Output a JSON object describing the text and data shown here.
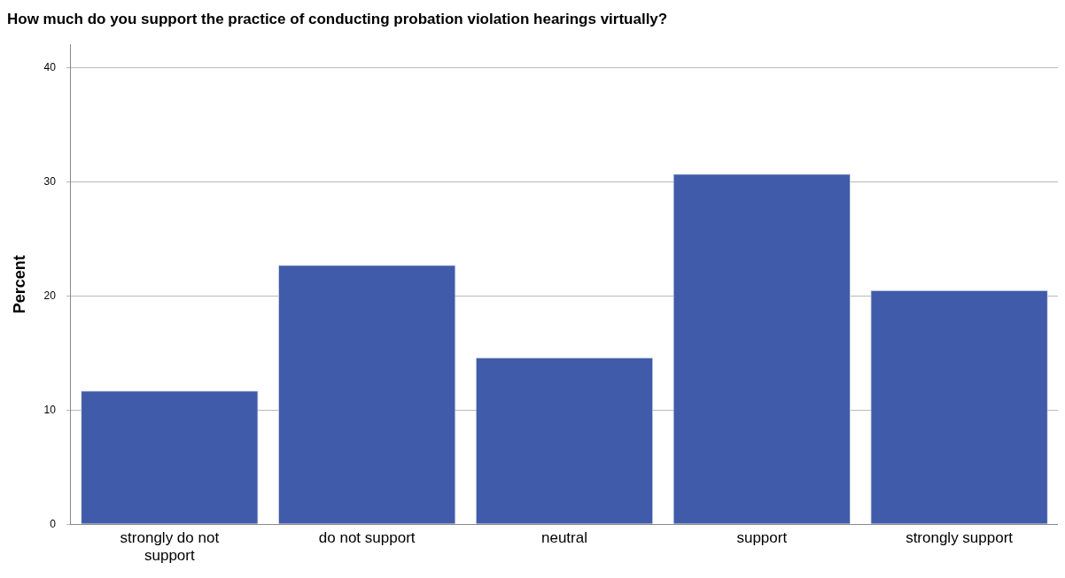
{
  "chart_data": {
    "type": "bar",
    "title": "How much do you support the practice of conducting probation violation hearings virtually?",
    "ylabel": "Percent",
    "categories": [
      "strongly do not support",
      "do not support",
      "neutral",
      "support",
      "strongly support"
    ],
    "values": [
      11.7,
      22.7,
      14.6,
      30.7,
      20.5
    ],
    "color": "#3f5ba9",
    "ylim": [
      0,
      42
    ],
    "yticks": [
      0,
      10,
      20,
      30,
      40
    ],
    "grid": "y"
  }
}
